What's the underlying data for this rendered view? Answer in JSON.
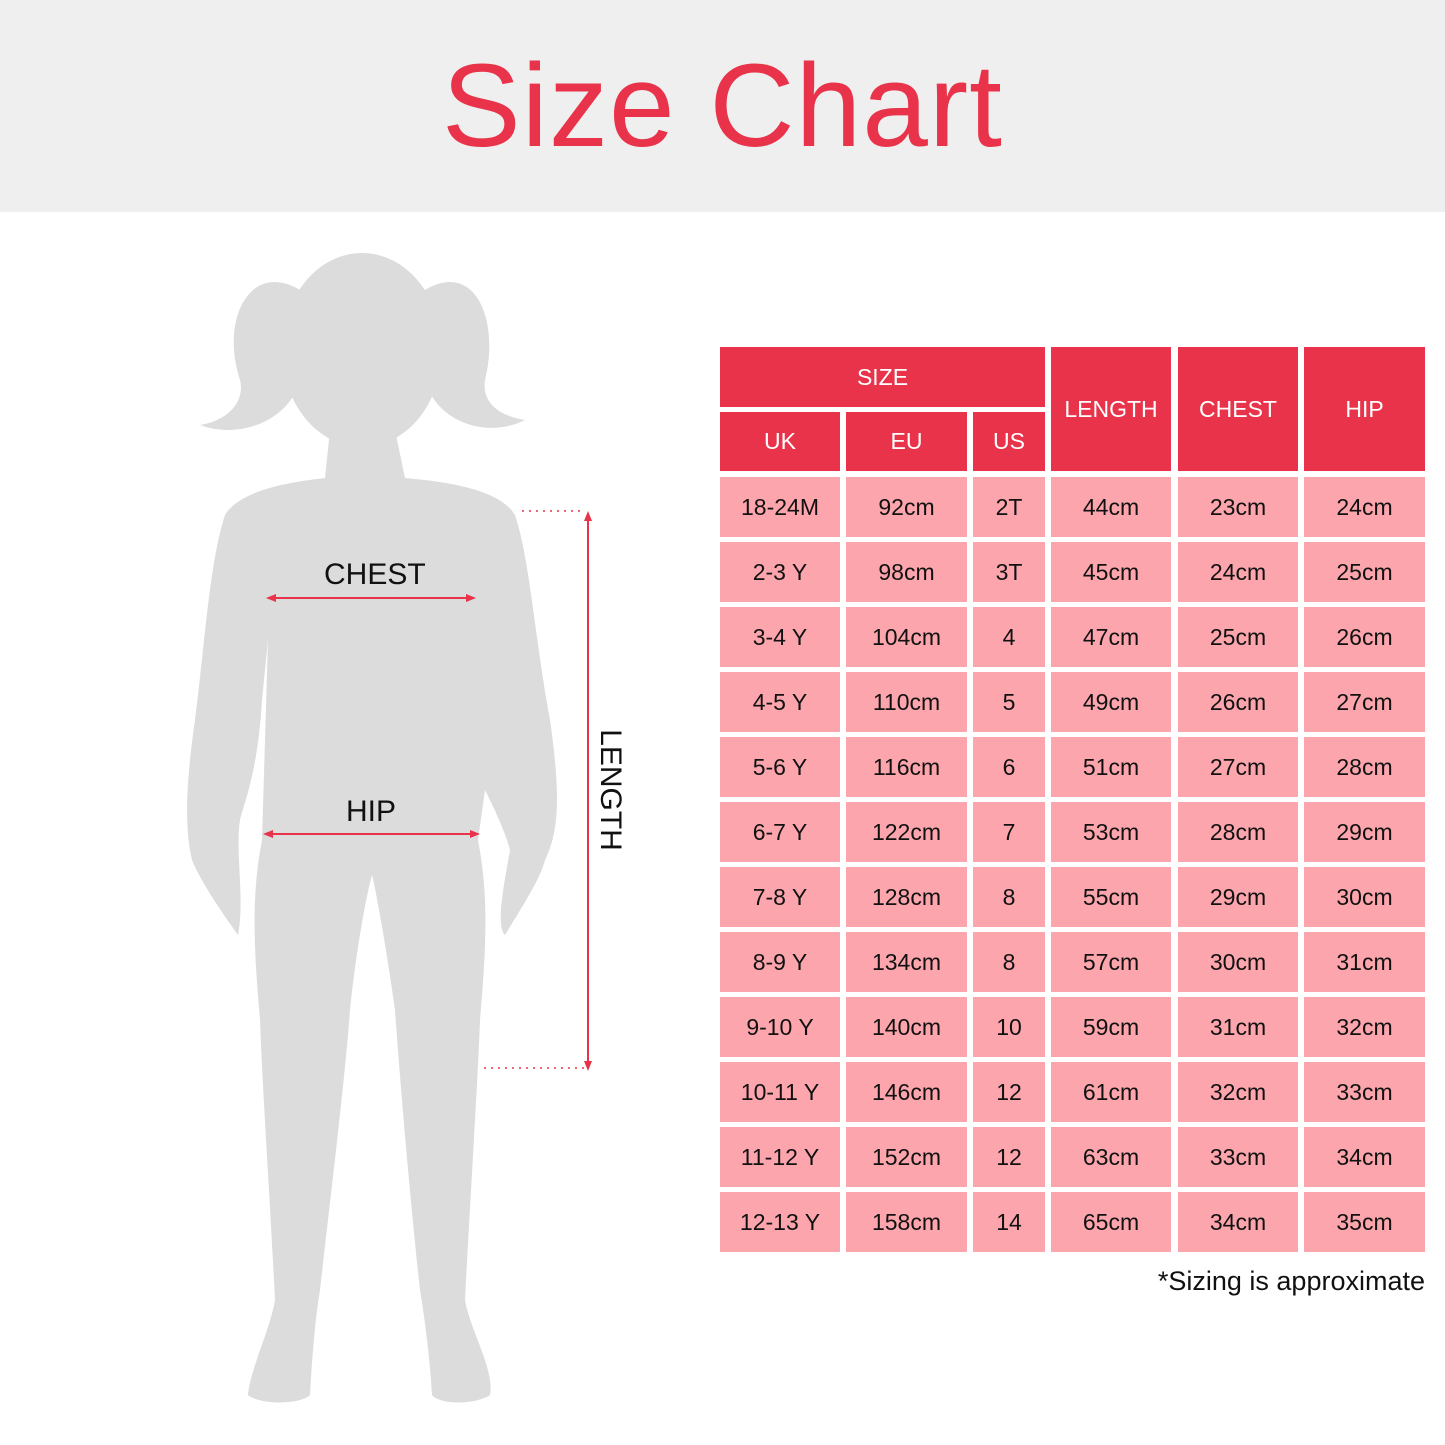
{
  "title": "Size Chart",
  "colors": {
    "accent": "#e8334a",
    "row_fill": "#fca5ad",
    "banner": "#efefef",
    "silhouette": "#dcdcdd"
  },
  "figure": {
    "chest_label": "CHEST",
    "hip_label": "HIP",
    "length_label": "LENGTH"
  },
  "table": {
    "group_header": "SIZE",
    "sub_headers": [
      "UK",
      "EU",
      "US"
    ],
    "headers": [
      "LENGTH",
      "CHEST",
      "HIP"
    ],
    "rows": [
      [
        "18-24M",
        "92cm",
        "2T",
        "44cm",
        "23cm",
        "24cm"
      ],
      [
        "2-3 Y",
        "98cm",
        "3T",
        "45cm",
        "24cm",
        "25cm"
      ],
      [
        "3-4 Y",
        "104cm",
        "4",
        "47cm",
        "25cm",
        "26cm"
      ],
      [
        "4-5 Y",
        "110cm",
        "5",
        "49cm",
        "26cm",
        "27cm"
      ],
      [
        "5-6 Y",
        "116cm",
        "6",
        "51cm",
        "27cm",
        "28cm"
      ],
      [
        "6-7 Y",
        "122cm",
        "7",
        "53cm",
        "28cm",
        "29cm"
      ],
      [
        "7-8 Y",
        "128cm",
        "8",
        "55cm",
        "29cm",
        "30cm"
      ],
      [
        "8-9 Y",
        "134cm",
        "8",
        "57cm",
        "30cm",
        "31cm"
      ],
      [
        "9-10 Y",
        "140cm",
        "10",
        "59cm",
        "31cm",
        "32cm"
      ],
      [
        "10-11 Y",
        "146cm",
        "12",
        "61cm",
        "32cm",
        "33cm"
      ],
      [
        "11-12 Y",
        "152cm",
        "12",
        "63cm",
        "33cm",
        "34cm"
      ],
      [
        "12-13 Y",
        "158cm",
        "14",
        "65cm",
        "34cm",
        "35cm"
      ]
    ]
  },
  "note": "*Sizing is approximate"
}
